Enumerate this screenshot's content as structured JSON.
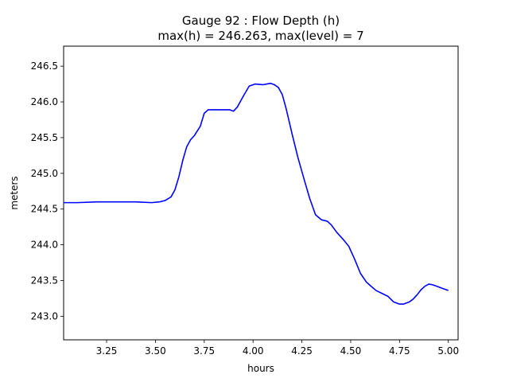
{
  "chart_data": {
    "type": "line",
    "title": "Gauge 92 : Flow Depth (h)",
    "subtitle": "max(h) = 246.263,    max(level) = 7",
    "xlabel": "hours",
    "ylabel": "meters",
    "xlim": [
      3.03,
      5.05
    ],
    "ylim": [
      242.67,
      246.78
    ],
    "xticks": [
      3.25,
      3.5,
      3.75,
      4.0,
      4.25,
      4.5,
      4.75,
      5.0
    ],
    "xtick_labels": [
      "3.25",
      "3.50",
      "3.75",
      "4.00",
      "4.25",
      "4.50",
      "4.75",
      "5.00"
    ],
    "yticks": [
      243.0,
      243.5,
      244.0,
      244.5,
      245.0,
      245.5,
      246.0,
      246.5
    ],
    "ytick_labels": [
      "243.0",
      "243.5",
      "244.0",
      "244.5",
      "245.0",
      "245.5",
      "246.0",
      "246.5"
    ],
    "grid": false,
    "series": [
      {
        "color": "#0000ff",
        "x": [
          3.03,
          3.1,
          3.2,
          3.3,
          3.4,
          3.48,
          3.52,
          3.55,
          3.58,
          3.6,
          3.62,
          3.64,
          3.66,
          3.68,
          3.7,
          3.73,
          3.75,
          3.77,
          3.79,
          3.82,
          3.85,
          3.88,
          3.9,
          3.92,
          3.95,
          3.98,
          4.01,
          4.05,
          4.07,
          4.09,
          4.11,
          4.13,
          4.15,
          4.17,
          4.2,
          4.23,
          4.26,
          4.29,
          4.32,
          4.35,
          4.38,
          4.4,
          4.43,
          4.46,
          4.49,
          4.52,
          4.55,
          4.58,
          4.6,
          4.63,
          4.66,
          4.69,
          4.72,
          4.75,
          4.77,
          4.8,
          4.82,
          4.84,
          4.86,
          4.88,
          4.9,
          4.92,
          4.95,
          4.97,
          4.99,
          5.0
        ],
        "y": [
          244.59,
          244.59,
          244.6,
          244.6,
          244.6,
          244.59,
          244.6,
          244.62,
          244.67,
          244.77,
          244.95,
          245.18,
          245.37,
          245.47,
          245.53,
          245.66,
          245.84,
          245.89,
          245.89,
          245.89,
          245.89,
          245.89,
          245.87,
          245.93,
          246.08,
          246.22,
          246.25,
          246.24,
          246.25,
          246.26,
          246.24,
          246.2,
          246.1,
          245.9,
          245.55,
          245.22,
          244.93,
          244.65,
          244.42,
          244.35,
          244.33,
          244.28,
          244.17,
          244.08,
          243.98,
          243.8,
          243.6,
          243.48,
          243.43,
          243.36,
          243.32,
          243.28,
          243.2,
          243.17,
          243.17,
          243.2,
          243.24,
          243.3,
          243.37,
          243.42,
          243.45,
          243.44,
          243.41,
          243.39,
          243.37,
          243.36
        ]
      }
    ]
  }
}
